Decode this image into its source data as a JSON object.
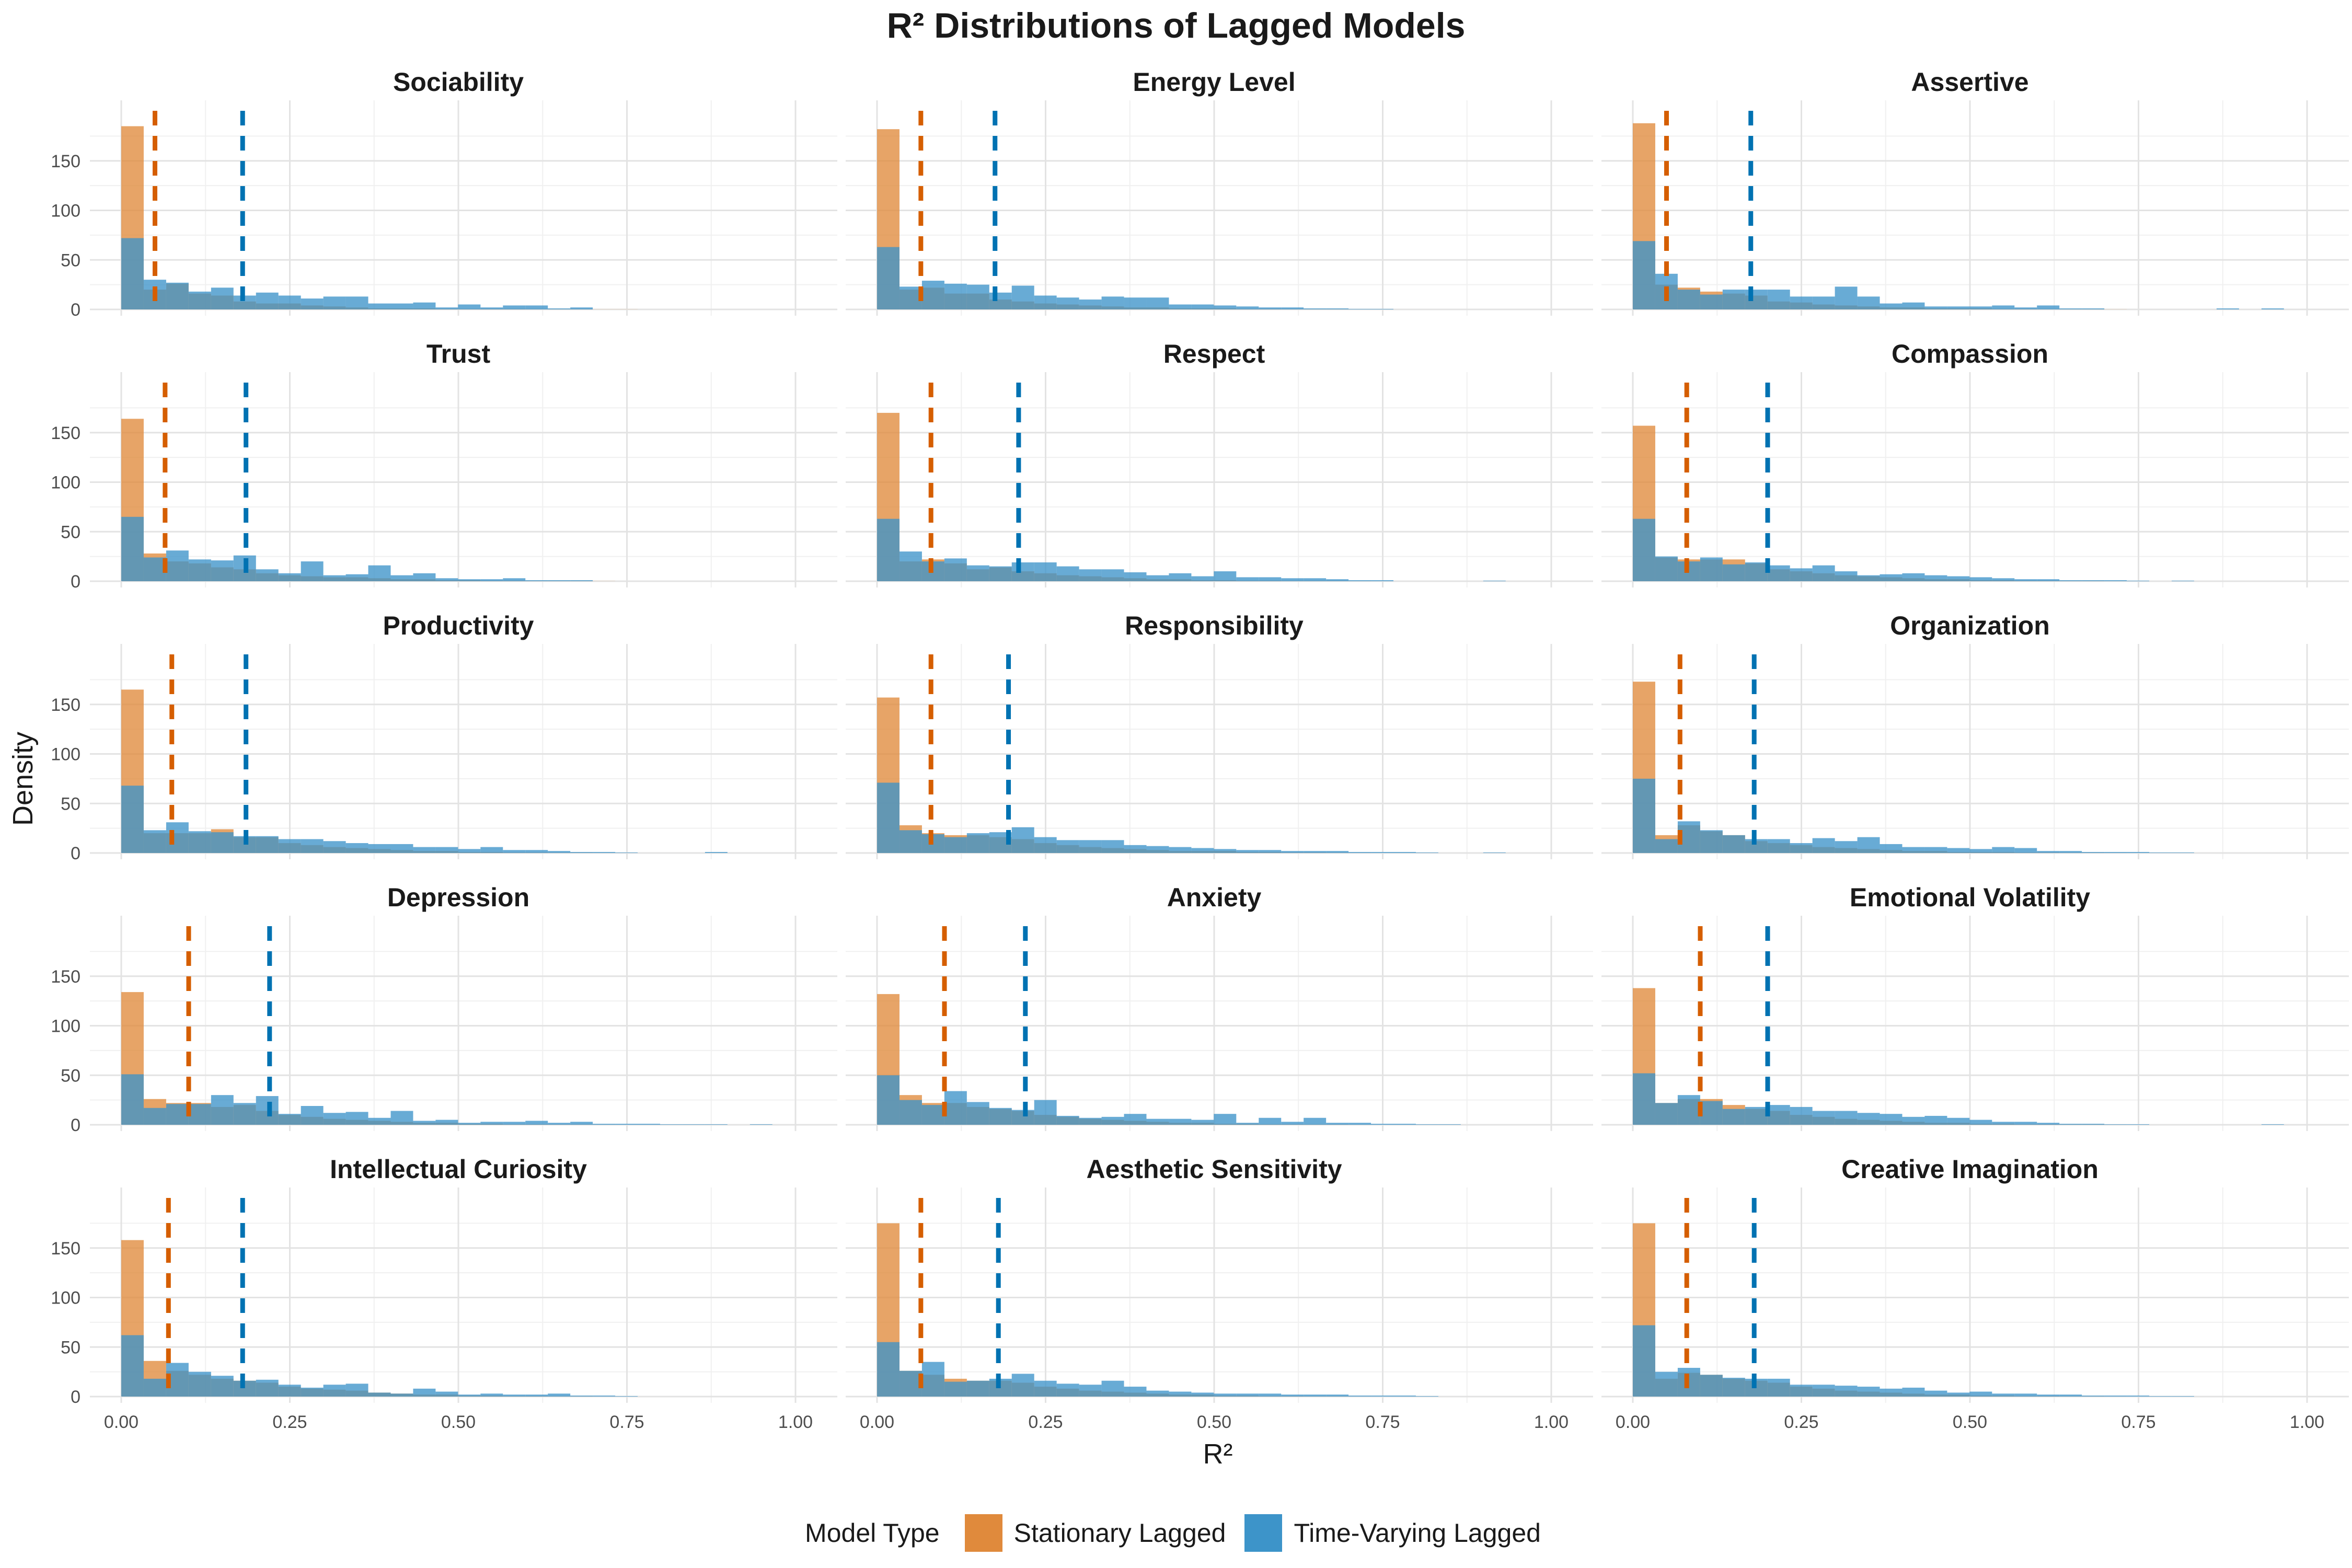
{
  "chart_data": {
    "type": "histogram",
    "title": "R² Distributions of Lagged Models",
    "xlabel": "R²",
    "ylabel": "Density",
    "xlim": [
      0,
      1
    ],
    "ylim": [
      0,
      190
    ],
    "x_ticks": [
      "0.00",
      "0.25",
      "0.50",
      "0.75",
      "1.00"
    ],
    "y_ticks": [
      "0",
      "50",
      "100",
      "150"
    ],
    "bin_width": 0.0333,
    "grid": true,
    "legend": {
      "title": "Model Type",
      "position": "bottom",
      "items": [
        {
          "name": "Stationary Lagged",
          "color": "#E08A3C"
        },
        {
          "name": "Time-Varying Lagged",
          "color": "#3D94C9"
        }
      ]
    },
    "colors": {
      "stationary": "#E08A3C",
      "time_varying": "#3D94C9",
      "overlap": "#5F7E8C",
      "stationary_mean_line": "#D55E00",
      "time_varying_mean_line": "#0072B2"
    },
    "panels": [
      {
        "title": "Sociability",
        "mean_stationary": 0.05,
        "mean_time_varying": 0.18,
        "stationary": [
          185,
          20,
          26,
          16,
          14,
          8,
          6,
          6,
          4,
          3,
          2,
          1,
          1,
          1,
          0.5,
          0.5,
          0.5,
          0.5,
          0.3,
          0.3,
          0.3,
          0.1,
          0.1,
          0,
          0,
          0,
          0,
          0,
          0,
          0
        ],
        "time_varying": [
          72,
          30,
          27,
          18,
          22,
          14,
          17,
          14,
          11,
          13,
          13,
          6,
          6,
          7,
          2,
          5,
          2,
          4,
          4,
          1,
          2,
          0,
          0,
          0,
          0,
          0,
          0,
          0,
          0,
          0
        ]
      },
      {
        "title": "Energy Level",
        "mean_stationary": 0.065,
        "mean_time_varying": 0.175,
        "stationary": [
          182,
          20,
          22,
          16,
          16,
          10,
          8,
          6,
          5,
          4,
          3,
          2,
          2,
          1,
          1,
          1,
          0.5,
          0.5,
          0.3,
          0.3,
          0.3,
          0.1,
          0.1,
          0,
          0,
          0,
          0,
          0,
          0,
          0
        ],
        "time_varying": [
          63,
          23,
          29,
          26,
          25,
          17,
          24,
          14,
          12,
          10,
          13,
          12,
          12,
          5,
          5,
          4,
          3,
          2,
          2,
          1,
          1,
          0.5,
          0.5,
          0,
          0,
          0,
          0,
          0,
          0,
          0
        ]
      },
      {
        "title": "Assertive",
        "mean_stationary": 0.05,
        "mean_time_varying": 0.175,
        "stationary": [
          188,
          25,
          22,
          18,
          16,
          14,
          8,
          7,
          5,
          4,
          3,
          2,
          2,
          1,
          1,
          1,
          0.5,
          0.5,
          0.3,
          0.3,
          0.3,
          0.1,
          0,
          0,
          0,
          0,
          0,
          0,
          0,
          0
        ],
        "time_varying": [
          69,
          36,
          20,
          15,
          20,
          20,
          20,
          13,
          13,
          23,
          13,
          6,
          7,
          3,
          3,
          3,
          4,
          2,
          4,
          1,
          1,
          0,
          0,
          0,
          0,
          0,
          1,
          0,
          1,
          0
        ]
      },
      {
        "title": "Trust",
        "mean_stationary": 0.065,
        "mean_time_varying": 0.185,
        "stationary": [
          164,
          28,
          20,
          18,
          14,
          12,
          8,
          6,
          5,
          4,
          4,
          3,
          2,
          2,
          1,
          1,
          0.5,
          0.5,
          0.3,
          0.3,
          0.3,
          0.1,
          0,
          0,
          0,
          0,
          0,
          0,
          0,
          0
        ],
        "time_varying": [
          65,
          24,
          31,
          22,
          21,
          26,
          12,
          8,
          20,
          6,
          7,
          16,
          6,
          8,
          3,
          2,
          2,
          3,
          1,
          1,
          1,
          0,
          0,
          0,
          0,
          0,
          0,
          0,
          0,
          0
        ]
      },
      {
        "title": "Respect",
        "mean_stationary": 0.08,
        "mean_time_varying": 0.21,
        "stationary": [
          170,
          20,
          22,
          18,
          12,
          14,
          10,
          8,
          6,
          5,
          4,
          3,
          2,
          2,
          1,
          1,
          0.5,
          0.5,
          0.3,
          0.3,
          0.3,
          0.1,
          0,
          0,
          0,
          0,
          0,
          0,
          0,
          0
        ],
        "time_varying": [
          63,
          30,
          20,
          23,
          16,
          15,
          19,
          19,
          15,
          12,
          12,
          9,
          6,
          8,
          5,
          10,
          4,
          4,
          3,
          3,
          2,
          1,
          1,
          0,
          0,
          0,
          0,
          0.5,
          0,
          0
        ]
      },
      {
        "title": "Compassion",
        "mean_stationary": 0.08,
        "mean_time_varying": 0.2,
        "stationary": [
          157,
          24,
          22,
          22,
          22,
          18,
          12,
          10,
          8,
          6,
          5,
          4,
          3,
          2,
          2,
          1,
          1,
          0.5,
          0.5,
          0.3,
          0.3,
          0.1,
          0,
          0,
          0,
          0,
          0,
          0,
          0,
          0
        ],
        "time_varying": [
          63,
          25,
          20,
          24,
          17,
          19,
          16,
          13,
          16,
          10,
          6,
          7,
          8,
          6,
          5,
          4,
          3,
          2,
          2,
          1,
          1,
          1,
          0.5,
          0,
          0.5,
          0,
          0,
          0,
          0,
          0
        ]
      },
      {
        "title": "Productivity",
        "mean_stationary": 0.075,
        "mean_time_varying": 0.185,
        "stationary": [
          165,
          20,
          20,
          20,
          24,
          16,
          16,
          10,
          8,
          6,
          5,
          4,
          3,
          2,
          2,
          1,
          1,
          0.5,
          0.5,
          0.3,
          0.3,
          0.1,
          0,
          0,
          0,
          0,
          0,
          0,
          0,
          0
        ],
        "time_varying": [
          68,
          23,
          31,
          22,
          21,
          17,
          17,
          14,
          14,
          12,
          10,
          9,
          9,
          6,
          6,
          4,
          6,
          3,
          3,
          2,
          1,
          1,
          0.5,
          0,
          0,
          0,
          1,
          0,
          0,
          0
        ]
      },
      {
        "title": "Responsibility",
        "mean_stationary": 0.08,
        "mean_time_varying": 0.195,
        "stationary": [
          157,
          28,
          20,
          18,
          18,
          16,
          14,
          10,
          8,
          6,
          5,
          4,
          3,
          2,
          2,
          2,
          1,
          1,
          0.5,
          0.5,
          0.3,
          0.1,
          0,
          0,
          0,
          0,
          0,
          0,
          0,
          0
        ],
        "time_varying": [
          71,
          23,
          19,
          16,
          20,
          21,
          26,
          16,
          13,
          13,
          13,
          8,
          7,
          6,
          5,
          4,
          3,
          3,
          2,
          2,
          2,
          1,
          1,
          1,
          0.5,
          0,
          0,
          0.5,
          0,
          0
        ]
      },
      {
        "title": "Organization",
        "mean_stationary": 0.07,
        "mean_time_varying": 0.18,
        "stationary": [
          173,
          18,
          28,
          22,
          18,
          12,
          10,
          8,
          6,
          5,
          4,
          3,
          2,
          2,
          1,
          1,
          1,
          0.5,
          0.5,
          0.3,
          0.3,
          0.1,
          0,
          0,
          0,
          0,
          0,
          0,
          0,
          0
        ],
        "time_varying": [
          75,
          14,
          32,
          23,
          18,
          14,
          14,
          10,
          15,
          12,
          16,
          9,
          6,
          6,
          5,
          4,
          6,
          5,
          2,
          2,
          1,
          1,
          1,
          0.5,
          0.5,
          0,
          0,
          0,
          0,
          0
        ]
      },
      {
        "title": "Depression",
        "mean_stationary": 0.1,
        "mean_time_varying": 0.22,
        "stationary": [
          134,
          26,
          22,
          22,
          18,
          20,
          14,
          10,
          8,
          6,
          5,
          4,
          3,
          2,
          2,
          1,
          1,
          0.5,
          0.5,
          0.3,
          0.3,
          0.1,
          0,
          0,
          0,
          0,
          0,
          0,
          0,
          0
        ],
        "time_varying": [
          51,
          17,
          21,
          21,
          30,
          22,
          29,
          11,
          19,
          12,
          13,
          7,
          14,
          4,
          5,
          2,
          3,
          3,
          4,
          2,
          3,
          1,
          1,
          1,
          0.5,
          0.5,
          0.5,
          0,
          0.5,
          0
        ]
      },
      {
        "title": "Anxiety",
        "mean_stationary": 0.1,
        "mean_time_varying": 0.22,
        "stationary": [
          132,
          30,
          22,
          22,
          18,
          16,
          14,
          10,
          8,
          6,
          5,
          4,
          3,
          2,
          2,
          1,
          1,
          0.5,
          0.5,
          0.3,
          0.3,
          0.1,
          0,
          0,
          0,
          0,
          0,
          0,
          0,
          0
        ],
        "time_varying": [
          50,
          25,
          20,
          34,
          23,
          17,
          15,
          25,
          9,
          7,
          8,
          11,
          6,
          6,
          5,
          11,
          2,
          7,
          3,
          7,
          2,
          2,
          1,
          1,
          0.5,
          0.5,
          0,
          0,
          0,
          0
        ]
      },
      {
        "title": "Emotional Volatility",
        "mean_stationary": 0.1,
        "mean_time_varying": 0.2,
        "stationary": [
          138,
          22,
          26,
          26,
          20,
          16,
          14,
          10,
          8,
          6,
          5,
          4,
          3,
          2,
          2,
          1,
          1,
          0.5,
          0.5,
          0.3,
          0.3,
          0.1,
          0,
          0,
          0,
          0,
          0,
          0,
          0,
          0
        ],
        "time_varying": [
          52,
          22,
          30,
          24,
          16,
          18,
          20,
          18,
          14,
          14,
          12,
          11,
          8,
          9,
          7,
          5,
          3,
          3,
          2,
          1,
          1,
          0.5,
          0.5,
          0,
          0,
          0,
          0,
          0,
          0.5,
          0
        ]
      },
      {
        "title": "Intellectual Curiosity",
        "mean_stationary": 0.07,
        "mean_time_varying": 0.18,
        "stationary": [
          158,
          36,
          26,
          22,
          18,
          16,
          14,
          10,
          8,
          7,
          6,
          4,
          3,
          2,
          2,
          1,
          1,
          0.5,
          0.5,
          0.3,
          0.3,
          0.1,
          0,
          0,
          0,
          0,
          0,
          0,
          0,
          0
        ],
        "time_varying": [
          62,
          18,
          34,
          25,
          21,
          16,
          17,
          12,
          9,
          12,
          13,
          4,
          3,
          8,
          5,
          2,
          3,
          2,
          2,
          3,
          1,
          1,
          0.5,
          0,
          0,
          0,
          0,
          0,
          0,
          0
        ]
      },
      {
        "title": "Aesthetic Sensitivity",
        "mean_stationary": 0.065,
        "mean_time_varying": 0.18,
        "stationary": [
          175,
          26,
          22,
          18,
          16,
          16,
          14,
          10,
          8,
          6,
          5,
          4,
          3,
          2,
          2,
          1,
          1,
          0.5,
          0.5,
          0.3,
          0.3,
          0.1,
          0,
          0,
          0,
          0,
          0,
          0,
          0,
          0
        ],
        "time_varying": [
          55,
          26,
          35,
          15,
          16,
          18,
          23,
          16,
          13,
          12,
          16,
          10,
          6,
          5,
          4,
          3,
          3,
          3,
          2,
          2,
          2,
          1,
          1,
          1,
          0.5,
          0,
          0,
          0,
          0,
          0
        ]
      },
      {
        "title": "Creative Imagination",
        "mean_stationary": 0.08,
        "mean_time_varying": 0.18,
        "stationary": [
          175,
          18,
          24,
          22,
          18,
          16,
          14,
          10,
          8,
          6,
          5,
          4,
          3,
          2,
          2,
          1,
          1,
          0.5,
          0.5,
          0.3,
          0.3,
          0.1,
          0,
          0,
          0,
          0,
          0,
          0,
          0,
          0
        ],
        "time_varying": [
          72,
          25,
          29,
          22,
          19,
          18,
          18,
          12,
          12,
          11,
          10,
          8,
          9,
          6,
          4,
          5,
          3,
          3,
          2,
          2,
          1,
          1,
          1,
          0.5,
          0.5,
          0,
          0,
          0,
          0,
          0
        ]
      }
    ]
  }
}
